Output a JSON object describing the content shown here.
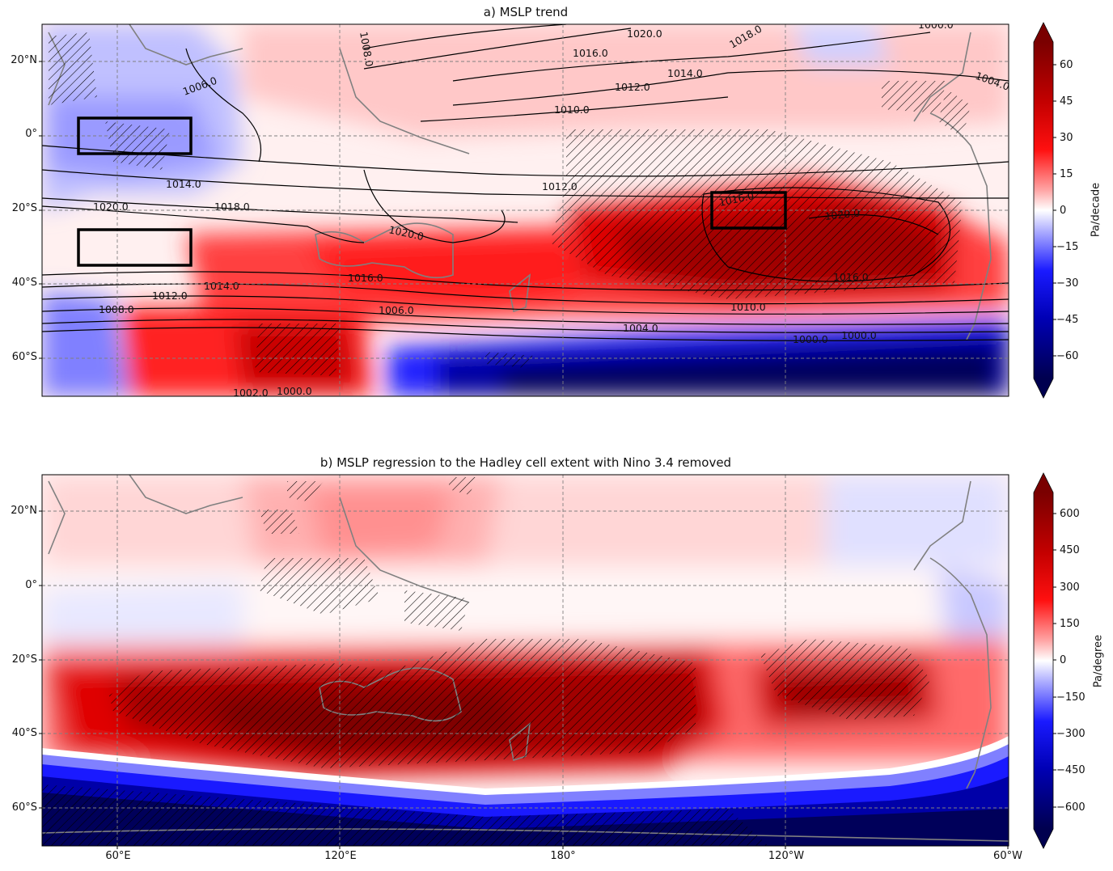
{
  "panel_a": {
    "title": "a) MSLP trend",
    "lat_labels": [
      "20°N",
      "0°",
      "20°S",
      "40°S",
      "60°S"
    ],
    "colorbar": {
      "unit": "Pa/decade",
      "ticks": [
        "60",
        "45",
        "30",
        "15",
        "0",
        "−15",
        "−30",
        "−45",
        "−60"
      ],
      "range": [
        -70,
        70
      ]
    },
    "contour_labels": [
      "1020.0",
      "1018.0",
      "1016.0",
      "1014.0",
      "1012.0",
      "1010.0",
      "1008.0",
      "1006.0",
      "1004.0",
      "1000.0",
      "1020.0",
      "1018.0",
      "1014.0",
      "1012.0",
      "1016.0",
      "1020.0",
      "1016.0",
      "1020.0",
      "1016.0",
      "1014.0",
      "1012.0",
      "1010.0",
      "1008.0",
      "1006.0",
      "1004.0",
      "1002.0",
      "1000.0",
      "1000.0",
      "1000.0"
    ]
  },
  "panel_b": {
    "title": "b) MSLP regression to the Hadley cell extent with Nino 3.4 removed",
    "lat_labels": [
      "20°N",
      "0°",
      "20°S",
      "40°S",
      "60°S"
    ],
    "lon_labels": [
      "60°E",
      "120°E",
      "180°",
      "120°W",
      "60°W"
    ],
    "colorbar": {
      "unit": "Pa/degree",
      "ticks": [
        "600",
        "450",
        "300",
        "150",
        "0",
        "−150",
        "−300",
        "−450",
        "−600"
      ],
      "range": [
        -700,
        700
      ]
    }
  },
  "colors": {
    "dark_red": "#7a0000",
    "red": "#ff0000",
    "white": "#ffffff",
    "blue": "#0000ff",
    "dark_blue": "#00004f",
    "coast": "#808080"
  }
}
